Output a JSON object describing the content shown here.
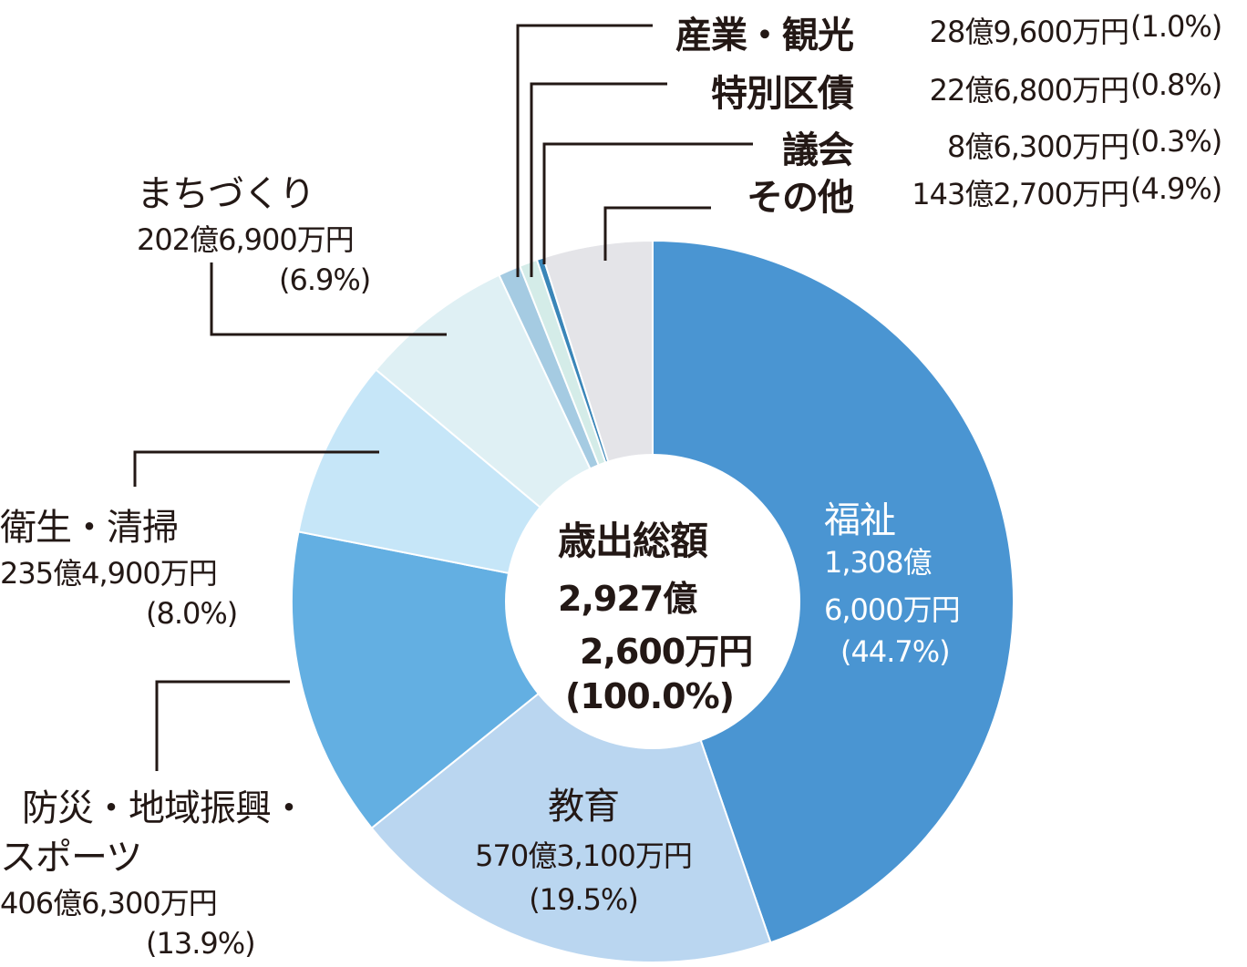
{
  "chart_data": {
    "type": "pie",
    "style": "donut",
    "center": {
      "title": "歳出総額",
      "amount_line1": "2,927億",
      "amount_line2": "2,600万円",
      "percent": "(100.0%)"
    },
    "slices": [
      {
        "name": "福祉",
        "amount": "1,308億6,000万円",
        "amount_line1": "1,308億",
        "amount_line2": "6,000万円",
        "percent": "(44.7%)",
        "value": 44.7,
        "color": "#4a95d2"
      },
      {
        "name": "教育",
        "amount": "570億3,100万円",
        "percent": "(19.5%)",
        "value": 19.5,
        "color": "#bad6f0"
      },
      {
        "name": "防災・地域振興・スポーツ",
        "name_line1": "防災・地域振興・",
        "name_line2": "スポーツ",
        "amount": "406億6,300万円",
        "percent": "(13.9%)",
        "value": 13.9,
        "color": "#63afe2"
      },
      {
        "name": "衛生・清掃",
        "amount": "235億4,900万円",
        "percent": "(8.0%)",
        "value": 8.0,
        "color": "#c6e6f8"
      },
      {
        "name": "まちづくり",
        "amount": "202億6,900万円",
        "percent": "(6.9%)",
        "value": 6.9,
        "color": "#dff0f4"
      },
      {
        "name": "産業・観光",
        "amount": "28億9,600万円",
        "percent": "(1.0%)",
        "value": 1.0,
        "color": "#a5cbe2"
      },
      {
        "name": "特別区債",
        "amount": "22億6,800万円",
        "percent": "(0.8%)",
        "value": 0.8,
        "color": "#d4ece8"
      },
      {
        "name": "議会",
        "amount": "8億6,300万円",
        "percent": "(0.3%)",
        "value": 0.3,
        "color": "#3a86b8"
      },
      {
        "name": "その他",
        "amount": "143億2,700万円",
        "percent": "(4.9%)",
        "value": 4.9,
        "color": "#e4e4e8"
      }
    ],
    "total_percent": 100.0,
    "order": "clockwise from top"
  }
}
